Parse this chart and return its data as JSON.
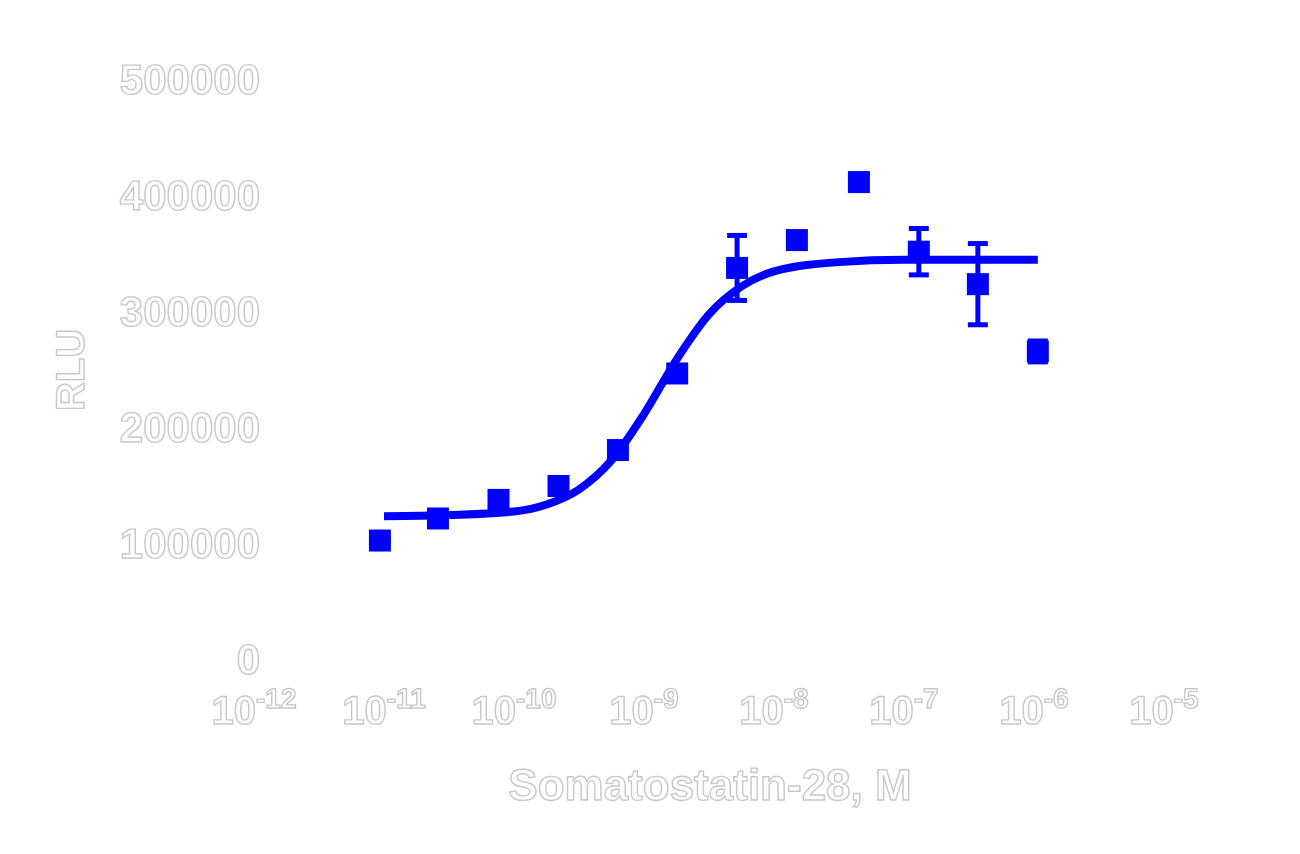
{
  "chart_data": {
    "type": "scatter",
    "xlabel": "Somatostatin-28, M",
    "ylabel": "RLU",
    "log": "x",
    "xlim": [
      1e-12,
      1e-05
    ],
    "ylim": [
      0,
      500000
    ],
    "xticks": [
      {
        "value": 1e-12,
        "label": "10$^{-12}$"
      },
      {
        "value": 1e-11,
        "label": "10$^{-11}$"
      },
      {
        "value": 1e-10,
        "label": "10$^{-10}$"
      },
      {
        "value": 1e-09,
        "label": "10$^{-9}$"
      },
      {
        "value": 1e-08,
        "label": "10$^{-8}$"
      },
      {
        "value": 1e-07,
        "label": "10$^{-7}$"
      },
      {
        "value": 1e-06,
        "label": "10$^{-6}$"
      },
      {
        "value": 1e-05,
        "label": "10$^{-5}$"
      }
    ],
    "yticks": [
      0,
      100000,
      200000,
      300000,
      400000,
      500000
    ],
    "marker": "square",
    "grid": false,
    "series": [
      {
        "color": "#0000ff",
        "x": [
          9.3e-12,
          2.6e-11,
          7.6e-11,
          2.2e-10,
          6.3e-10,
          1.8e-09,
          5.2e-09,
          1.5e-08,
          4.5e-08,
          1.3e-07,
          3.7e-07,
          1.07e-06
        ],
        "values": [
          103000,
          122000,
          138000,
          150000,
          181000,
          247000,
          338000,
          362000,
          412000,
          352000,
          324000,
          266000
        ],
        "errors": [
          null,
          null,
          null,
          null,
          null,
          null,
          28000,
          null,
          null,
          20000,
          35000,
          9000
        ]
      },
      {
        "type": "line",
        "color": "#0000ff",
        "marker": "none",
        "x": [
          1e-11,
          3.16e-11,
          1e-10,
          1.78e-10,
          3.16e-10,
          5.62e-10,
          1e-09,
          1.78e-09,
          3.16e-09,
          5.62e-09,
          1e-08,
          3.16e-08,
          1e-07,
          1.07e-06
        ],
        "values": [
          124000,
          125000,
          128000,
          134000,
          147000,
          172000,
          212000,
          259000,
          298000,
          322000,
          335000,
          343000,
          345000,
          345000
        ]
      }
    ]
  }
}
